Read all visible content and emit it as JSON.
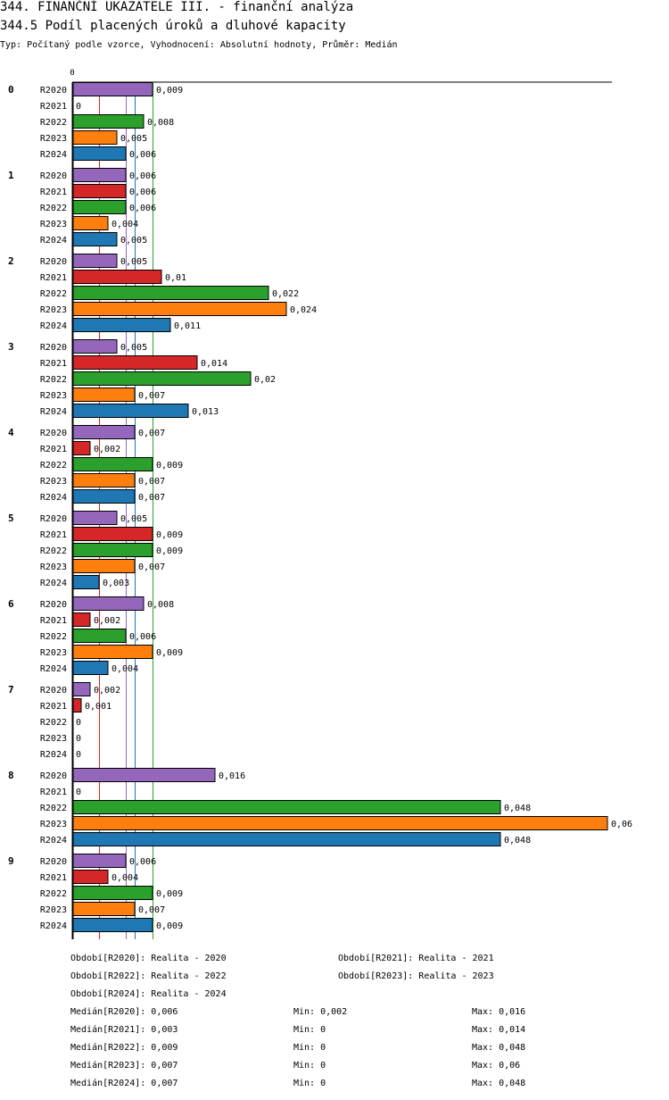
{
  "header": {
    "title": "344. FINANČNÍ UKAZATELE III. - finanční analýza",
    "subtitle": "344.5 Podíl placených úroků a dluhové kapacity",
    "type_line": "Typ: Počítaný podle vzorce, Vyhodnocení: Absolutní hodnoty, Průměr: Medián"
  },
  "chart_data": {
    "type": "bar",
    "orientation": "horizontal",
    "title": "344.5 Podíl placených úroků a dluhové kapacity",
    "axis_zero_label": "0",
    "xlim": [
      0,
      0.06
    ],
    "groups": [
      "0",
      "1",
      "2",
      "3",
      "4",
      "5",
      "6",
      "7",
      "8",
      "9"
    ],
    "series": [
      {
        "name": "R2020",
        "color": "#9467bd",
        "values": [
          0.009,
          0.006,
          0.005,
          0.005,
          0.007,
          0.005,
          0.008,
          0.002,
          0.016,
          0.006
        ],
        "labels": [
          "0,009",
          "0,006",
          "0,005",
          "0,005",
          "0,007",
          "0,005",
          "0,008",
          "0,002",
          "0,016",
          "0,006"
        ]
      },
      {
        "name": "R2021",
        "color": "#d62728",
        "values": [
          0,
          0.006,
          0.01,
          0.014,
          0.002,
          0.009,
          0.002,
          0.001,
          0,
          0.004
        ],
        "labels": [
          "0",
          "0,006",
          "0,01",
          "0,014",
          "0,002",
          "0,009",
          "0,002",
          "0,001",
          "0",
          "0,004"
        ]
      },
      {
        "name": "R2022",
        "color": "#2ca02c",
        "values": [
          0.008,
          0.006,
          0.022,
          0.02,
          0.009,
          0.009,
          0.006,
          0,
          0.048,
          0.009
        ],
        "labels": [
          "0,008",
          "0,006",
          "0,022",
          "0,02",
          "0,009",
          "0,009",
          "0,006",
          "0",
          "0,048",
          "0,009"
        ]
      },
      {
        "name": "R2023",
        "color": "#ff7f0e",
        "values": [
          0.005,
          0.004,
          0.024,
          0.007,
          0.007,
          0.007,
          0.009,
          0,
          0.06,
          0.007
        ],
        "labels": [
          "0,005",
          "0,004",
          "0,024",
          "0,007",
          "0,007",
          "0,007",
          "0,009",
          "0",
          "0,06",
          "0,007"
        ]
      },
      {
        "name": "R2024",
        "color": "#1f77b4",
        "values": [
          0.006,
          0.005,
          0.011,
          0.013,
          0.007,
          0.003,
          0.004,
          0,
          0.048,
          0.009
        ],
        "labels": [
          "0,006",
          "0,005",
          "0,011",
          "0,013",
          "0,007",
          "0,003",
          "0,004",
          "0",
          "0,048",
          "0,009"
        ]
      }
    ],
    "median_lines": [
      {
        "series": "R2020",
        "value": 0.006,
        "color": "#9467bd"
      },
      {
        "series": "R2021",
        "value": 0.003,
        "color": "#d62728"
      },
      {
        "series": "R2022",
        "value": 0.009,
        "color": "#2ca02c"
      },
      {
        "series": "R2023",
        "value": 0.007,
        "color": "#ff7f0e"
      },
      {
        "series": "R2024",
        "value": 0.007,
        "color": "#1f77b4"
      }
    ]
  },
  "legend": {
    "periods": [
      "Období[R2020]: Realita - 2020",
      "Období[R2021]: Realita - 2021",
      "Období[R2022]: Realita - 2022",
      "Období[R2023]: Realita - 2023",
      "Období[R2024]: Realita - 2024"
    ],
    "stats": [
      {
        "median": "Medián[R2020]: 0,006",
        "min": "Min: 0,002",
        "max": "Max: 0,016"
      },
      {
        "median": "Medián[R2021]: 0,003",
        "min": "Min: 0",
        "max": "Max: 0,014"
      },
      {
        "median": "Medián[R2022]: 0,009",
        "min": "Min: 0",
        "max": "Max: 0,048"
      },
      {
        "median": "Medián[R2023]: 0,007",
        "min": "Min: 0",
        "max": "Max: 0,06"
      },
      {
        "median": "Medián[R2024]: 0,007",
        "min": "Min: 0",
        "max": "Max: 0,048"
      }
    ]
  }
}
